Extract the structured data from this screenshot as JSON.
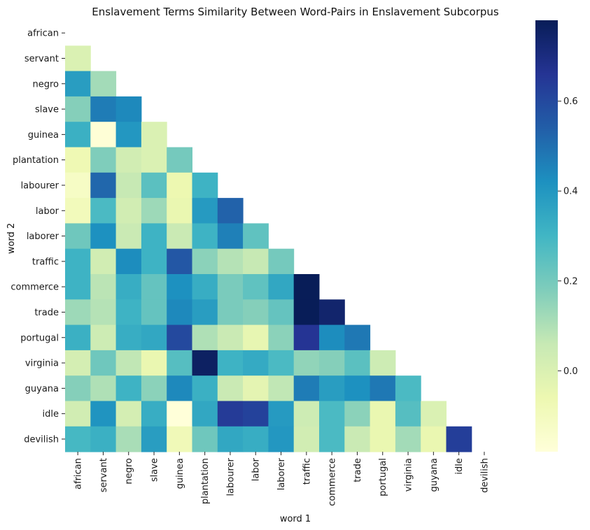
{
  "chart_data": {
    "type": "heatmap",
    "title": "Enslavement Terms Similarity Between Word-Pairs in Enslavement Subcorpus",
    "xlabel": "word 1",
    "ylabel": "word 2",
    "labels": [
      "african",
      "servant",
      "negro",
      "slave",
      "guinea",
      "plantation",
      "labourer",
      "labor",
      "laborer",
      "traffic",
      "commerce",
      "trade",
      "portugal",
      "virginia",
      "guyana",
      "idle",
      "devilish"
    ],
    "mask": "upper-triangle-including-diagonal",
    "colormap": "YlGnBu",
    "vmin": -0.18,
    "vmax": 0.78,
    "colorbar_ticks": [
      0.0,
      0.2,
      0.4,
      0.6
    ],
    "colorbar_tick_labels": [
      "0.0",
      "0.2",
      "0.4",
      "0.6"
    ],
    "values": [
      [
        null,
        null,
        null,
        null,
        null,
        null,
        null,
        null,
        null,
        null,
        null,
        null,
        null,
        null,
        null,
        null
      ],
      [
        0.0,
        null,
        null,
        null,
        null,
        null,
        null,
        null,
        null,
        null,
        null,
        null,
        null,
        null,
        null,
        null
      ],
      [
        0.38,
        0.12,
        null,
        null,
        null,
        null,
        null,
        null,
        null,
        null,
        null,
        null,
        null,
        null,
        null,
        null
      ],
      [
        0.17,
        0.47,
        0.44,
        null,
        null,
        null,
        null,
        null,
        null,
        null,
        null,
        null,
        null,
        null,
        null,
        null
      ],
      [
        0.32,
        -0.17,
        0.4,
        0.0,
        null,
        null,
        null,
        null,
        null,
        null,
        null,
        null,
        null,
        null,
        null,
        null
      ],
      [
        -0.07,
        0.18,
        0.03,
        0.0,
        0.2,
        null,
        null,
        null,
        null,
        null,
        null,
        null,
        null,
        null,
        null,
        null
      ],
      [
        -0.12,
        0.52,
        0.06,
        0.25,
        -0.06,
        0.31,
        null,
        null,
        null,
        null,
        null,
        null,
        null,
        null,
        null,
        null
      ],
      [
        -0.09,
        0.28,
        0.03,
        0.13,
        -0.05,
        0.39,
        0.53,
        null,
        null,
        null,
        null,
        null,
        null,
        null,
        null,
        null
      ],
      [
        0.21,
        0.42,
        0.05,
        0.31,
        0.05,
        0.31,
        0.46,
        0.24,
        null,
        null,
        null,
        null,
        null,
        null,
        null,
        null
      ],
      [
        0.31,
        0.03,
        0.43,
        0.31,
        0.56,
        0.16,
        0.09,
        0.06,
        0.2,
        null,
        null,
        null,
        null,
        null,
        null,
        null
      ],
      [
        0.31,
        0.08,
        0.33,
        0.23,
        0.42,
        0.33,
        0.19,
        0.24,
        0.35,
        0.78,
        null,
        null,
        null,
        null,
        null,
        null
      ],
      [
        0.13,
        0.09,
        0.31,
        0.23,
        0.44,
        0.38,
        0.19,
        0.17,
        0.23,
        0.78,
        0.74,
        null,
        null,
        null,
        null,
        null
      ],
      [
        0.32,
        0.04,
        0.33,
        0.35,
        0.6,
        0.1,
        0.05,
        -0.04,
        0.16,
        0.66,
        0.43,
        0.48,
        null,
        null,
        null,
        null
      ],
      [
        0.02,
        0.21,
        0.07,
        -0.05,
        0.26,
        0.76,
        0.31,
        0.34,
        0.28,
        0.15,
        0.17,
        0.25,
        0.04,
        null,
        null,
        null
      ],
      [
        0.17,
        0.1,
        0.31,
        0.16,
        0.44,
        0.32,
        0.05,
        -0.03,
        0.07,
        0.47,
        0.38,
        0.42,
        0.48,
        0.28,
        null,
        null
      ],
      [
        0.03,
        0.41,
        0.02,
        0.33,
        -0.18,
        0.35,
        0.64,
        0.62,
        0.39,
        0.04,
        0.28,
        0.16,
        -0.05,
        0.26,
        0.0,
        null
      ],
      [
        0.29,
        0.32,
        0.11,
        0.38,
        -0.08,
        0.21,
        0.35,
        0.33,
        0.4,
        0.03,
        0.28,
        0.05,
        -0.05,
        0.12,
        -0.05,
        0.63
      ]
    ]
  }
}
